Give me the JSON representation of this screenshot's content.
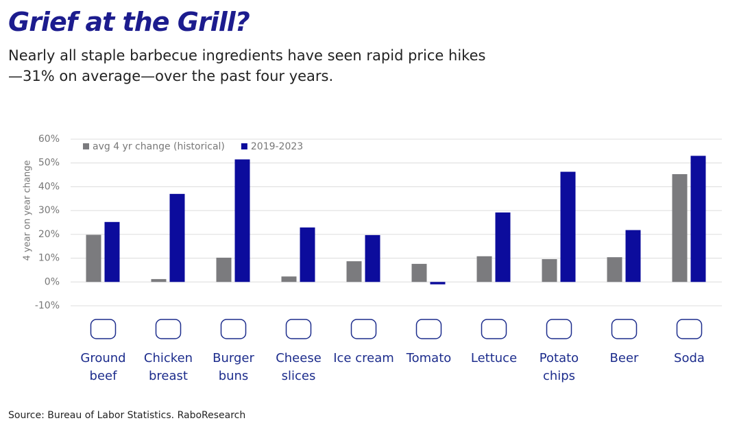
{
  "chart_data": {
    "type": "bar",
    "title": "Grief at the Grill?",
    "subtitle": "Nearly all staple barbecue ingredients have seen rapid price hikes—31% on average—over the past four years.",
    "y_label": "4 year on year change",
    "source": "Source: Bureau of Labor Statistics. RaboResearch",
    "categories": [
      "Ground beef",
      "Chicken breast",
      "Burger buns",
      "Cheese slices",
      "Ice cream",
      "Tomato",
      "Lettuce",
      "Potato chips",
      "Beer",
      "Soda"
    ],
    "series": [
      {
        "name": "avg 4 yr change (historical)",
        "color": "#7b7b7e",
        "values": [
          19.8,
          1.2,
          10.2,
          2.3,
          8.7,
          7.6,
          10.8,
          9.6,
          10.4,
          45.3
        ]
      },
      {
        "name": "2019-2023",
        "color": "#0c0c9c",
        "values": [
          25.2,
          37,
          51.5,
          22.9,
          19.7,
          -1,
          29.2,
          46.3,
          21.8,
          53
        ]
      }
    ],
    "ylim": [
      -10,
      60
    ],
    "yticks": [
      {
        "value": -10,
        "label": "-10%"
      },
      {
        "value": 0,
        "label": "0%"
      },
      {
        "value": 10,
        "label": "10%"
      },
      {
        "value": 20,
        "label": "20%"
      },
      {
        "value": 30,
        "label": "30%"
      },
      {
        "value": 40,
        "label": "40%"
      },
      {
        "value": 50,
        "label": "50%"
      },
      {
        "value": 60,
        "label": "60%"
      }
    ],
    "grid": true,
    "legend": "top-left"
  }
}
